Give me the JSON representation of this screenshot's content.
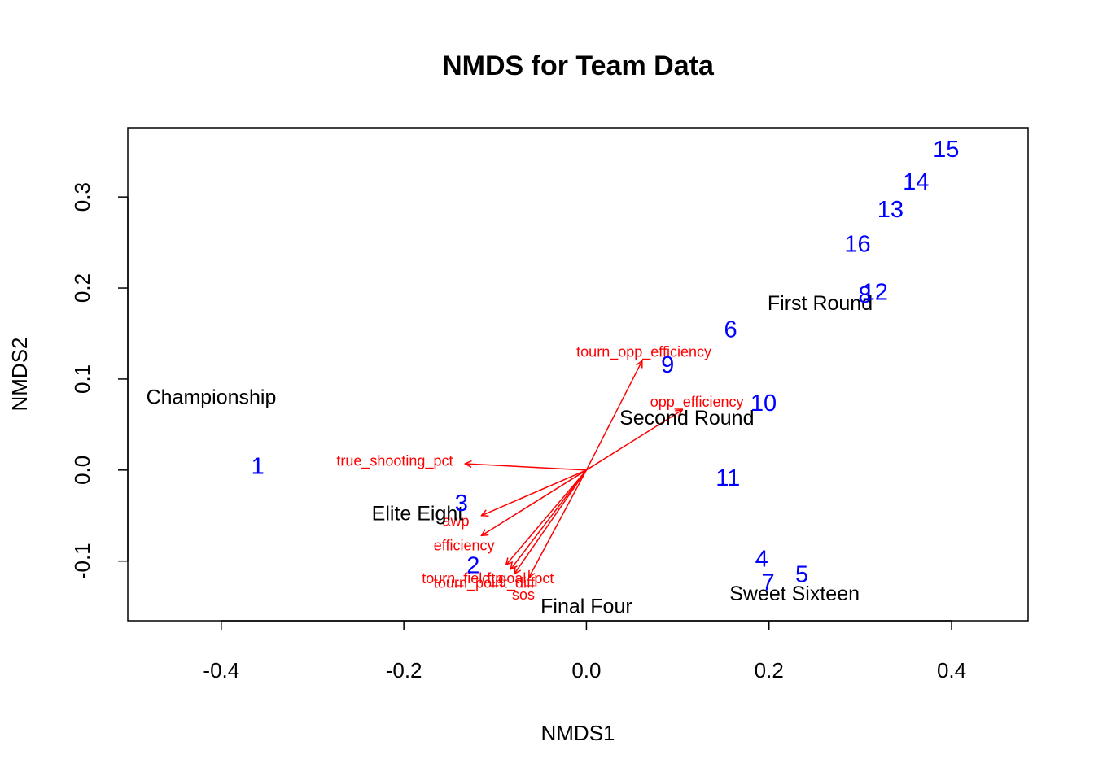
{
  "chart_data": {
    "type": "scatter",
    "title": "NMDS for Team Data",
    "xlabel": "NMDS1",
    "ylabel": "NMDS2",
    "xlim": [
      -0.5024,
      0.4838
    ],
    "ylim": [
      -0.1655,
      0.3761
    ],
    "x_ticks": [
      {
        "value": -0.4,
        "label": "-0.4"
      },
      {
        "value": -0.2,
        "label": "-0.2"
      },
      {
        "value": 0.0,
        "label": "0.0"
      },
      {
        "value": 0.2,
        "label": "0.2"
      },
      {
        "value": 0.4,
        "label": "0.4"
      }
    ],
    "y_ticks": [
      {
        "value": -0.1,
        "label": "-0.1"
      },
      {
        "value": 0.0,
        "label": "0.0"
      },
      {
        "value": 0.1,
        "label": "0.1"
      },
      {
        "value": 0.2,
        "label": "0.2"
      },
      {
        "value": 0.3,
        "label": "0.3"
      }
    ],
    "point_color": "#0000ff",
    "arrow_color": "#ff0000",
    "text_color": "#000000",
    "points": [
      {
        "label": "1",
        "x": -0.36,
        "y": 0.004
      },
      {
        "label": "2",
        "x": -0.124,
        "y": -0.105
      },
      {
        "label": "3",
        "x": -0.137,
        "y": -0.037
      },
      {
        "label": "4",
        "x": 0.192,
        "y": -0.098
      },
      {
        "label": "5",
        "x": 0.236,
        "y": -0.115
      },
      {
        "label": "6",
        "x": 0.158,
        "y": 0.154
      },
      {
        "label": "7",
        "x": 0.199,
        "y": -0.124
      },
      {
        "label": "8",
        "x": 0.305,
        "y": 0.192
      },
      {
        "label": "9",
        "x": 0.089,
        "y": 0.115
      },
      {
        "label": "10",
        "x": 0.194,
        "y": 0.073
      },
      {
        "label": "11",
        "x": 0.155,
        "y": -0.009
      },
      {
        "label": "12",
        "x": 0.316,
        "y": 0.195
      },
      {
        "label": "13",
        "x": 0.333,
        "y": 0.286
      },
      {
        "label": "14",
        "x": 0.361,
        "y": 0.316
      },
      {
        "label": "15",
        "x": 0.394,
        "y": 0.352
      },
      {
        "label": "16",
        "x": 0.297,
        "y": 0.248
      }
    ],
    "group_labels": [
      {
        "label": "Championship",
        "x": -0.411,
        "y": 0.08
      },
      {
        "label": "First Round",
        "x": 0.256,
        "y": 0.183
      },
      {
        "label": "Second Round",
        "x": 0.11,
        "y": 0.057
      },
      {
        "label": "Elite Eight",
        "x": -0.185,
        "y": -0.048
      },
      {
        "label": "Final Four",
        "x": 0.0,
        "y": -0.15
      },
      {
        "label": "Sweet Sixteen",
        "x": 0.228,
        "y": -0.136
      }
    ],
    "vectors": [
      {
        "label": "tourn_opp_efficiency",
        "x": 0.061,
        "y": 0.12,
        "lx": 0.063,
        "ly": 0.13
      },
      {
        "label": "opp_efficiency",
        "x": 0.105,
        "y": 0.066,
        "lx": 0.121,
        "ly": 0.075
      },
      {
        "label": "true_shooting_pct",
        "x": -0.133,
        "y": 0.007,
        "lx": -0.21,
        "ly": 0.01
      },
      {
        "label": "awp",
        "x": -0.115,
        "y": -0.05,
        "lx": -0.143,
        "ly": -0.056
      },
      {
        "label": "efficiency",
        "x": -0.115,
        "y": -0.072,
        "lx": -0.134,
        "ly": -0.083
      },
      {
        "label": "tourn_field_goal_pct",
        "x": -0.088,
        "y": -0.104,
        "lx": -0.108,
        "ly": -0.119
      },
      {
        "label": "ftp",
        "x": -0.083,
        "y": -0.109,
        "lx": -0.1,
        "ly": -0.119
      },
      {
        "label": "tourn_point_diff",
        "x": -0.079,
        "y": -0.114,
        "lx": -0.112,
        "ly": -0.124
      },
      {
        "label": "sos",
        "x": -0.063,
        "y": -0.118,
        "lx": -0.069,
        "ly": -0.137
      }
    ]
  }
}
